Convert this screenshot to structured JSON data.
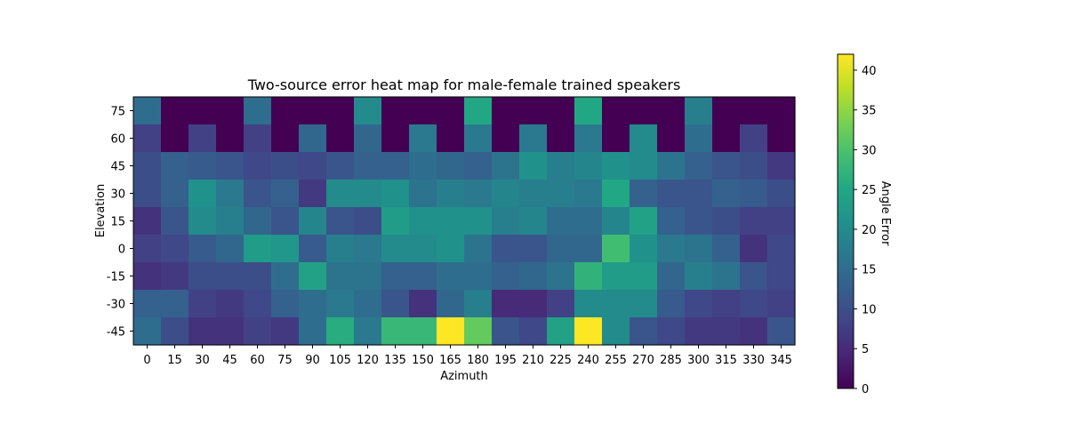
{
  "chart_data": {
    "type": "heatmap",
    "title": "Two-source error heat map for male-female trained speakers",
    "xlabel": "Azimuth",
    "ylabel": "Elevation",
    "colorbar_label": "Angle Error",
    "colormap": "viridis",
    "vmin": 0,
    "vmax": 42,
    "colorbar_ticks": [
      0,
      5,
      10,
      15,
      20,
      25,
      30,
      35,
      40
    ],
    "x": [
      0,
      15,
      30,
      45,
      60,
      75,
      90,
      105,
      120,
      135,
      150,
      165,
      180,
      195,
      210,
      225,
      240,
      255,
      270,
      285,
      300,
      315,
      330,
      345
    ],
    "y": [
      75,
      60,
      45,
      30,
      15,
      0,
      -15,
      -30,
      -45
    ],
    "y_tick_labels": [
      "75",
      "60",
      "45",
      "30",
      "15",
      "0",
      "-15",
      "-30",
      "-45"
    ],
    "values": [
      [
        15,
        0,
        0,
        0,
        15,
        0,
        0,
        0,
        20,
        0,
        0,
        0,
        25,
        0,
        0,
        0,
        25,
        0,
        0,
        0,
        18,
        0,
        0,
        0
      ],
      [
        8,
        0,
        8,
        0,
        8,
        0,
        14,
        0,
        14,
        0,
        17,
        0,
        17,
        0,
        17,
        0,
        17,
        0,
        20,
        0,
        15,
        0,
        8,
        0
      ],
      [
        10,
        13,
        12,
        11,
        9,
        10,
        9,
        11,
        13,
        13,
        15,
        14,
        13,
        16,
        21,
        18,
        19,
        21,
        20,
        16,
        13,
        11,
        10,
        7
      ],
      [
        10,
        13,
        21,
        17,
        11,
        13,
        7,
        20,
        20,
        21,
        16,
        18,
        17,
        19,
        18,
        18,
        17,
        25,
        13,
        11,
        11,
        13,
        12,
        10
      ],
      [
        6,
        11,
        20,
        18,
        14,
        11,
        19,
        11,
        10,
        23,
        21,
        21,
        21,
        18,
        19,
        15,
        15,
        19,
        24,
        13,
        11,
        10,
        8,
        8
      ],
      [
        8,
        9,
        12,
        14,
        23,
        22,
        12,
        18,
        17,
        20,
        20,
        21,
        16,
        11,
        11,
        14,
        14,
        29,
        21,
        17,
        16,
        13,
        6,
        9
      ],
      [
        6,
        7,
        10,
        10,
        10,
        15,
        24,
        16,
        16,
        13,
        13,
        15,
        15,
        13,
        14,
        16,
        27,
        23,
        23,
        14,
        18,
        16,
        11,
        9
      ],
      [
        13,
        13,
        8,
        7,
        9,
        13,
        15,
        17,
        15,
        11,
        6,
        14,
        18,
        5,
        5,
        8,
        20,
        20,
        20,
        12,
        9,
        8,
        9,
        8
      ],
      [
        15,
        10,
        6,
        6,
        8,
        7,
        15,
        26,
        17,
        28,
        28,
        42,
        32,
        11,
        9,
        24,
        42,
        20,
        11,
        9,
        7,
        7,
        6,
        11
      ]
    ]
  }
}
